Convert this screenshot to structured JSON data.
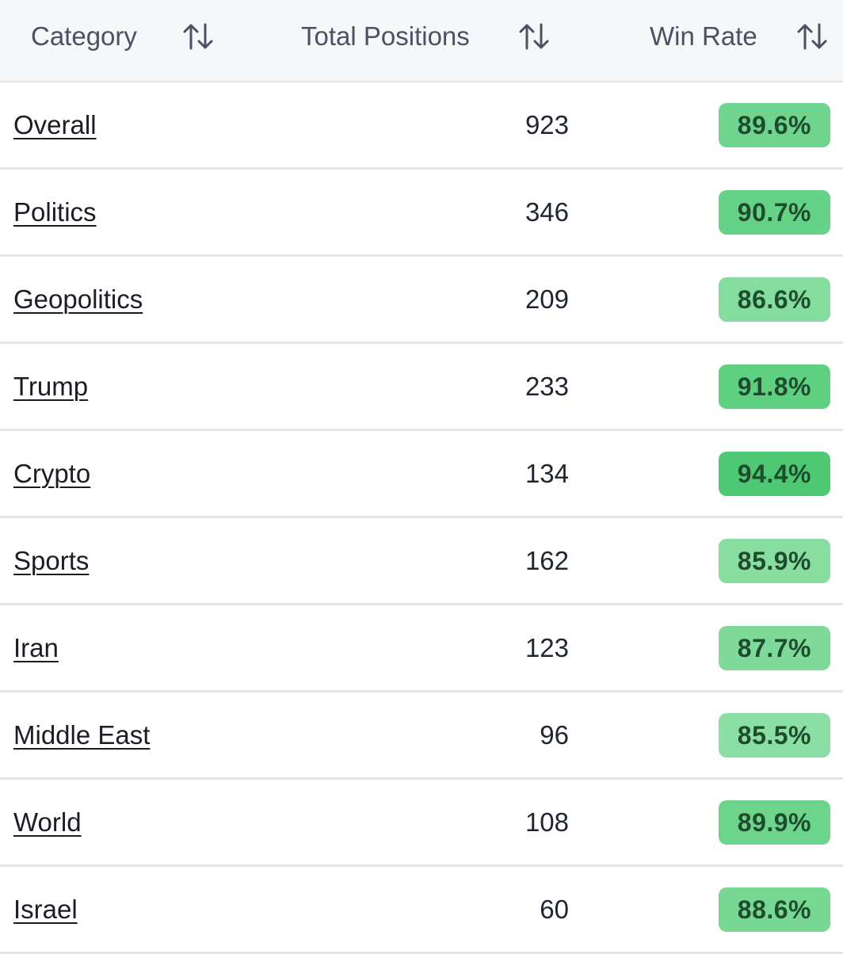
{
  "table": {
    "columns": [
      {
        "label": "Category",
        "sort_icon": "sort-arrows-icon"
      },
      {
        "label": "Total Positions",
        "sort_icon": "sort-arrows-icon"
      },
      {
        "label": "Win Rate",
        "sort_icon": "sort-arrows-icon"
      }
    ],
    "rows": [
      {
        "category": "Overall",
        "positions": "923",
        "win_rate": "89.6%",
        "badge_color": "#6fd58e"
      },
      {
        "category": "Politics",
        "positions": "346",
        "win_rate": "90.7%",
        "badge_color": "#66d287"
      },
      {
        "category": "Geopolitics",
        "positions": "209",
        "win_rate": "86.6%",
        "badge_color": "#84dc9e"
      },
      {
        "category": "Trump",
        "positions": "233",
        "win_rate": "91.8%",
        "badge_color": "#5fcf82"
      },
      {
        "category": "Crypto",
        "positions": "134",
        "win_rate": "94.4%",
        "badge_color": "#4fc874"
      },
      {
        "category": "Sports",
        "positions": "162",
        "win_rate": "85.9%",
        "badge_color": "#88dea1"
      },
      {
        "category": "Iran",
        "positions": "123",
        "win_rate": "87.7%",
        "badge_color": "#7fda99"
      },
      {
        "category": "Middle East",
        "positions": "96",
        "win_rate": "85.5%",
        "badge_color": "#8cdfa4"
      },
      {
        "category": "World",
        "positions": "108",
        "win_rate": "89.9%",
        "badge_color": "#6cd48b"
      },
      {
        "category": "Israel",
        "positions": "60",
        "win_rate": "88.6%",
        "badge_color": "#77d894"
      }
    ]
  },
  "colors": {
    "header_bg": "#f6f7f9",
    "row_divider": "#e3e5ea",
    "badge_text": "#1e4d2e"
  }
}
